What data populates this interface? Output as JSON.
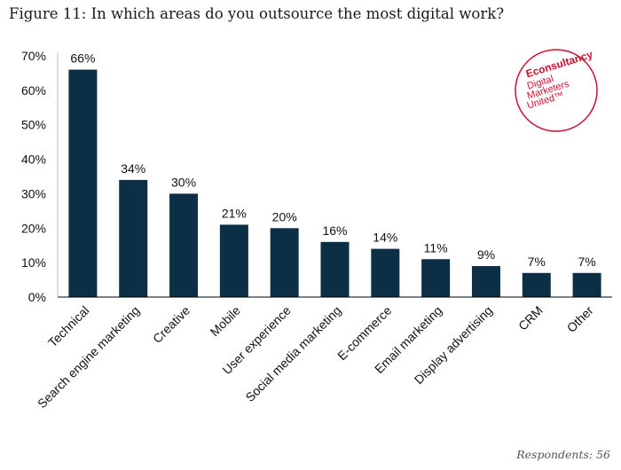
{
  "title": "Figure 11: In which areas do you outsource the most digital work?",
  "footer": "Respondents: 56",
  "logo": {
    "brand": "Econsultancy",
    "tagline": [
      "Digital",
      "Marketers",
      "United™"
    ]
  },
  "colors": {
    "bar": "#0d2f45",
    "axis": "#000000",
    "logo": "#c8102e"
  },
  "chart_data": {
    "type": "bar",
    "categories": [
      "Technical",
      "Search engine marketing",
      "Creative",
      "Mobile",
      "User experience",
      "Social media marketing",
      "E-commerce",
      "Email marketing",
      "Display advertising",
      "CRM",
      "Other"
    ],
    "values": [
      66,
      34,
      30,
      21,
      20,
      16,
      14,
      11,
      9,
      7,
      7
    ],
    "data_labels": [
      "66%",
      "34%",
      "30%",
      "21%",
      "20%",
      "16%",
      "14%",
      "11%",
      "9%",
      "7%",
      "7%"
    ],
    "yticks": [
      "0%",
      "10%",
      "20%",
      "30%",
      "40%",
      "50%",
      "60%",
      "70%"
    ],
    "ylim": [
      0,
      70
    ],
    "grid": false,
    "legend": "none",
    "xlabel": "",
    "ylabel": ""
  }
}
